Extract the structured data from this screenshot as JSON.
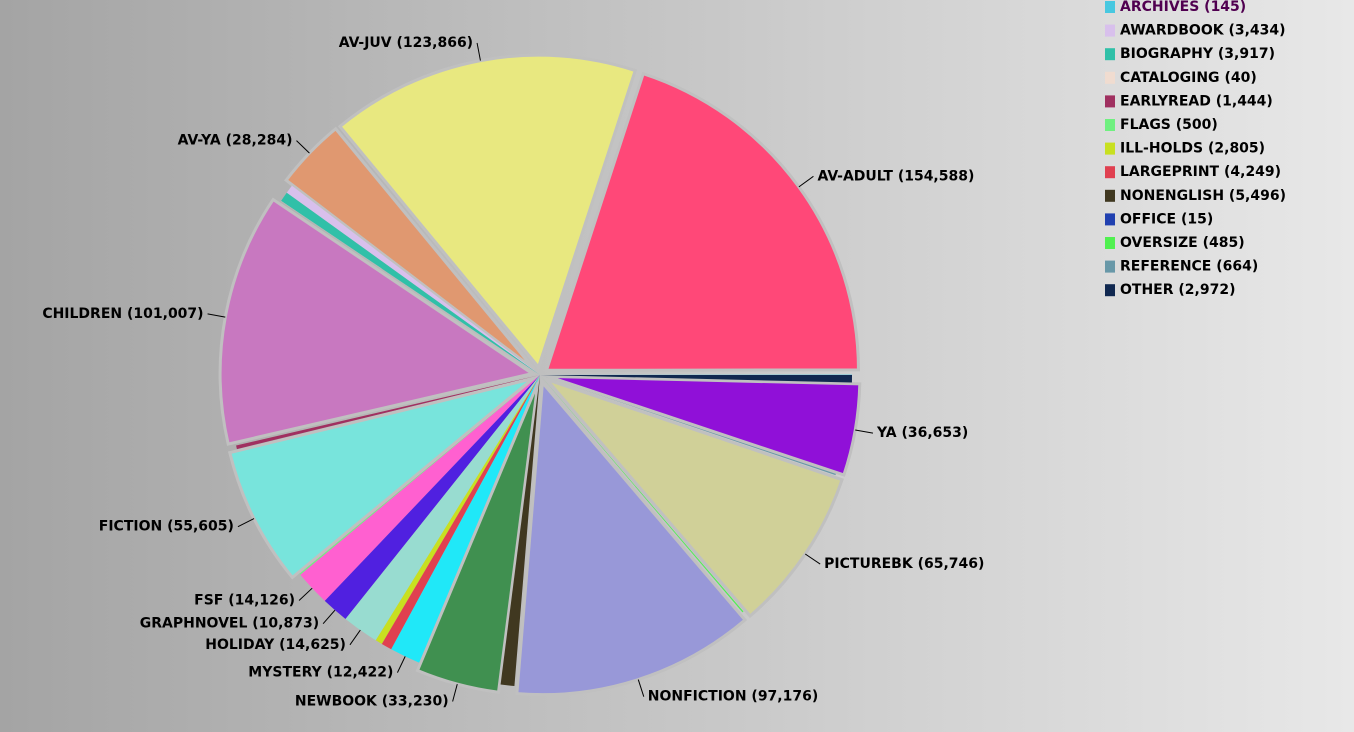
{
  "chart_data": {
    "type": "pie",
    "categories": [
      "ARCHIVES",
      "AV-ADULT",
      "AV-JUV",
      "AV-YA",
      "AWARDBOOK",
      "BIOGRAPHY",
      "CATALOGING",
      "CHILDREN",
      "EARLYREAD",
      "FICTION",
      "FLAGS",
      "FSF",
      "GRAPHNOVEL",
      "HOLIDAY",
      "ILL-HOLDS",
      "LARGEPRINT",
      "MYSTERY",
      "NEWBOOK",
      "NONENGLISH",
      "NONFICTION",
      "OFFICE",
      "OVERSIZE",
      "PICTUREBK",
      "REFERENCE",
      "YA",
      "OTHER"
    ],
    "values": [
      145,
      154588,
      123866,
      28284,
      3434,
      3917,
      40,
      101007,
      1444,
      55605,
      500,
      14126,
      10873,
      14625,
      2805,
      4249,
      12422,
      33230,
      5496,
      97176,
      15,
      485,
      65746,
      664,
      36653,
      2972
    ],
    "value_labels": [
      "(145)",
      "(154,588)",
      "(123,866)",
      "(28,284)",
      "(3,434)",
      "(3,917)",
      "(40)",
      "(101,007)",
      "(1,444)",
      "(55,605)",
      "(500)",
      "(14,126)",
      "(10,873)",
      "(14,625)",
      "(2,805)",
      "(4,249)",
      "(12,422)",
      "(33,230)",
      "(5,496)",
      "(97,176)",
      "(15)",
      "(485)",
      "(65,746)",
      "(664)",
      "(36,653)",
      "(2,972)"
    ],
    "colors": [
      "#48c8e0",
      "#ff4878",
      "#e8e880",
      "#e09870",
      "#d8c0ec",
      "#30c0a8",
      "#f0dcd0",
      "#c878c0",
      "#a03060",
      "#78e4dc",
      "#70f080",
      "#ff60d0",
      "#5020e0",
      "#98dcd0",
      "#c8e020",
      "#e04050",
      "#20e8f8",
      "#409050",
      "#403820",
      "#9898d8",
      "#2040b0",
      "#50f050",
      "#d0d098",
      "#6898a8",
      "#9010d8",
      "#102850"
    ]
  }
}
